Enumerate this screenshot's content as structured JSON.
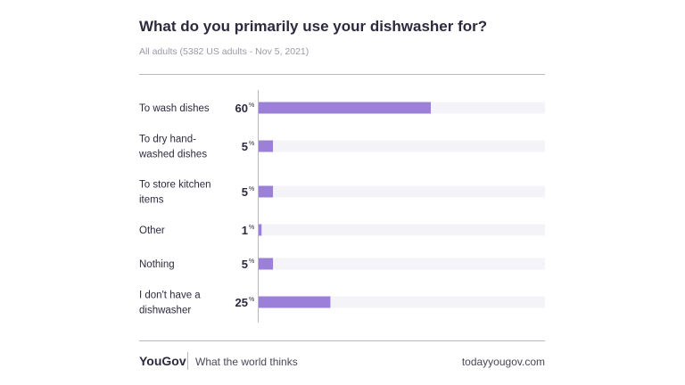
{
  "chart_data": {
    "type": "bar",
    "orientation": "horizontal",
    "title": "What do you primarily use your dishwasher for?",
    "subtitle": "All adults (5382 US adults - Nov 5, 2021)",
    "categories": [
      "To wash dishes",
      "To dry hand-washed dishes",
      "To store kitchen items",
      "Other",
      "Nothing",
      "I don't have a dishwasher"
    ],
    "values": [
      60,
      5,
      5,
      1,
      5,
      25
    ],
    "unit": "%",
    "xlim": [
      0,
      100
    ],
    "grid": false,
    "bar_color": "#9b7fd8",
    "track_color": "#f4f4f8"
  },
  "footer": {
    "brand": "YouGov",
    "tagline": "What the world thinks",
    "site": "todayyougov.com"
  }
}
